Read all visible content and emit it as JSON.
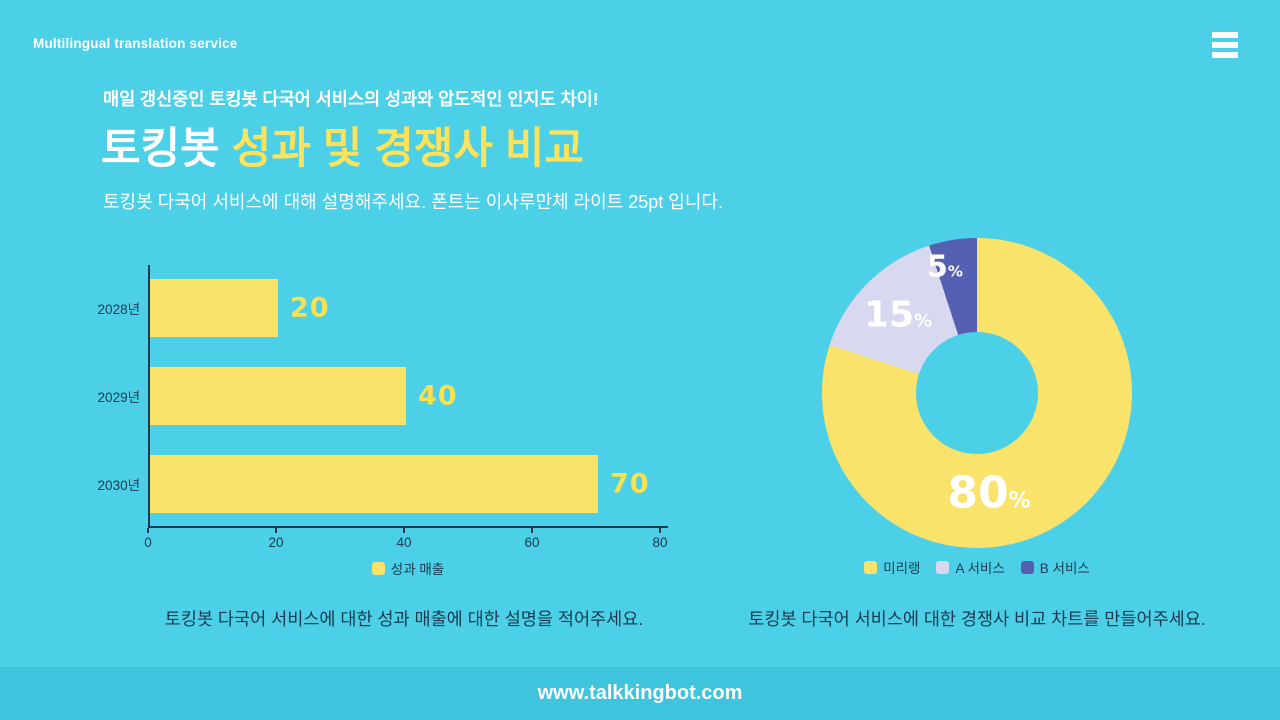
{
  "colors": {
    "background": "#4BD0E7",
    "footer_bar": "#3EC4DC",
    "yellow": "#FAE36A",
    "title_yellow": "#FCE35B",
    "value_label_yellow": "#F8E04E",
    "lavender": "#D8D9F0",
    "purple": "#5560B2",
    "dark_text": "#1C3A50",
    "white": "#FFFFFF"
  },
  "header": {
    "brand": "Multilingual translation service",
    "menu_icon": "hamburger-icon"
  },
  "intro": {
    "tagline": "매일 갱신중인 토킹봇 다국어 서비스의 성과와 압도적인 인지도 차이!",
    "title_white": "토킹봇 ",
    "title_yellow": "성과 및 경쟁사 비교",
    "subtitle": "토킹봇 다국어 서비스에 대해 설명해주세요.  폰트는 이사루만체 라이트 25pt 입니다."
  },
  "chart_data": [
    {
      "type": "bar",
      "orientation": "horizontal",
      "title": "",
      "categories": [
        "2028년",
        "2029년",
        "2030년"
      ],
      "values": [
        20,
        40,
        70
      ],
      "series_name": "성과 매출",
      "xlim": [
        0,
        80
      ],
      "x_ticks": [
        0,
        20,
        40,
        60,
        80
      ],
      "grid": false,
      "legend_position": "bottom",
      "bar_color": "#FAE36A",
      "value_label_color": "#F8E04E"
    },
    {
      "type": "pie",
      "donut": true,
      "title": "",
      "labels": [
        "미리랭",
        "A 서비스",
        "B 서비스"
      ],
      "values": [
        80,
        15,
        5
      ],
      "value_labels": [
        "80%",
        "15%",
        "5%"
      ],
      "colors": [
        "#FAE36A",
        "#D8D9F0",
        "#5560B2"
      ],
      "start_angle_deg": 0,
      "direction": "clockwise",
      "legend_position": "bottom"
    }
  ],
  "captions": {
    "left": "토킹봇 다국어 서비스에 대한 성과 매출에 대한 설명을 적어주세요.",
    "right": "토킹봇 다국어 서비스에 대한 경쟁사 비교 차트를 만들어주세요."
  },
  "footer": {
    "url": "www.talkkingbot.com"
  }
}
